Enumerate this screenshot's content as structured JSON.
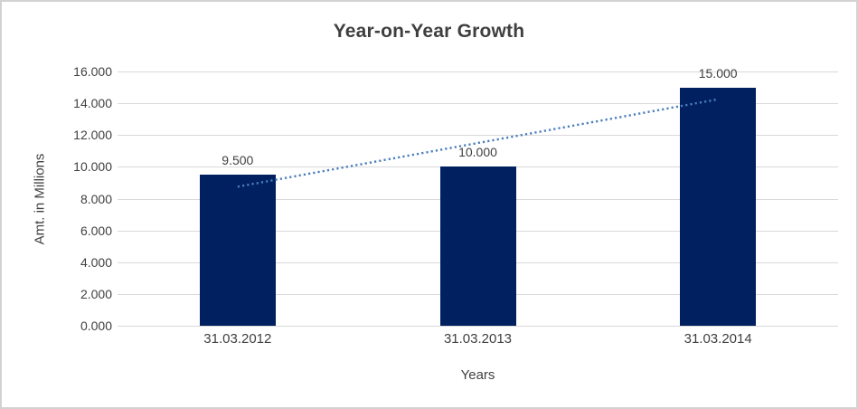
{
  "chart_data": {
    "type": "bar",
    "title": "Year-on-Year Growth",
    "xlabel": "Years",
    "ylabel": "Amt. in Millions",
    "categories": [
      "31.03.2012",
      "31.03.2013",
      "31.03.2014"
    ],
    "values": [
      9.5,
      10,
      15
    ],
    "data_labels": [
      "9.500",
      "10.000",
      "15.000"
    ],
    "ylim": [
      0,
      16
    ],
    "ytick_step": 2,
    "ytick_labels": [
      "0.000",
      "2.000",
      "4.000",
      "6.000",
      "8.000",
      "10.000",
      "12.000",
      "14.000",
      "16.000"
    ],
    "grid": true,
    "legend": "none",
    "trendline": {
      "type": "linear",
      "style": "dotted",
      "start_value": 8.75,
      "end_value": 14.25
    }
  },
  "style": {
    "bar_color": "#002060",
    "trendline_color": "#4a7ebb",
    "gridline_color": "#d9d9d9",
    "text_color": "#404040",
    "title_color": "#3f3f3f",
    "frame_border_color": "#d2d2d2",
    "background": "#ffffff"
  }
}
